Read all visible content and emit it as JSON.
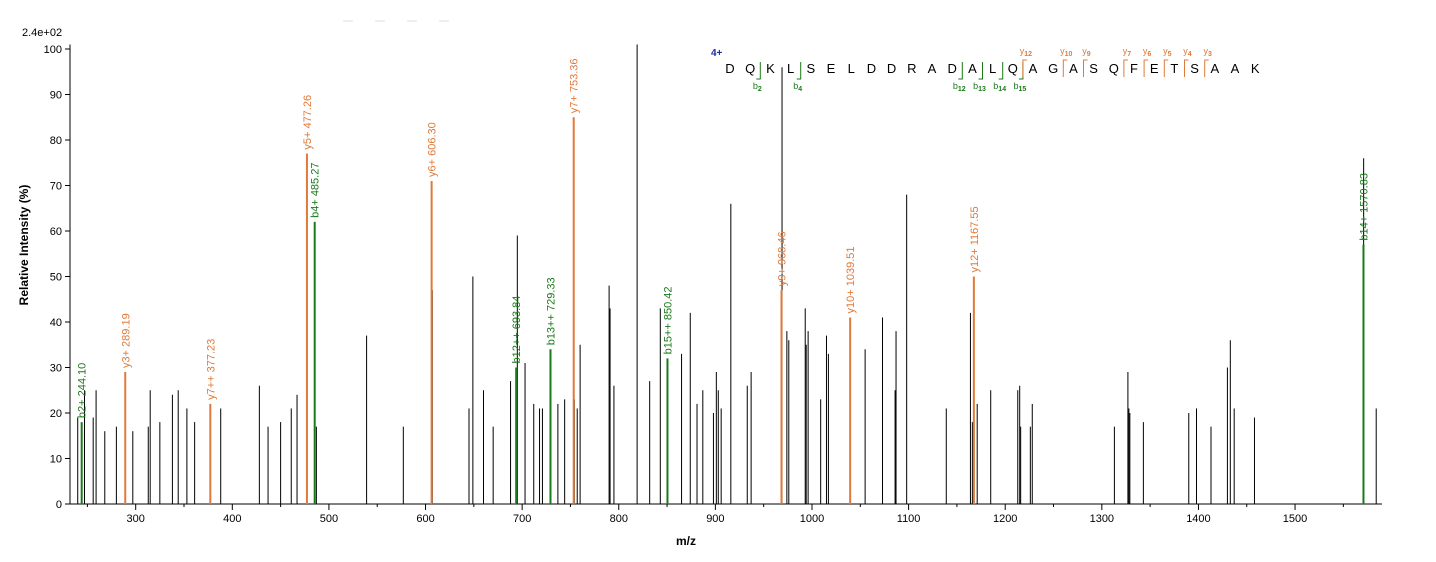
{
  "chart_data": {
    "type": "bar",
    "title": "",
    "xlabel": "m/z",
    "ylabel": "Relative   Intensity (%)",
    "max_intensity_label": "2.4e+02",
    "xlim": [
      232,
      1590
    ],
    "ylim": [
      0,
      101
    ],
    "xticks": [
      300,
      400,
      500,
      600,
      700,
      800,
      900,
      1000,
      1100,
      1200,
      1300,
      1400,
      1500
    ],
    "yticks": [
      0,
      10,
      20,
      30,
      40,
      50,
      60,
      70,
      80,
      90,
      100
    ],
    "colors": {
      "unmatched": "#000000",
      "b_ion": "#1a7a1a",
      "y_ion": "#e07a3a",
      "charge": "#1a2fa0"
    },
    "series": [
      {
        "name": "b ions",
        "points": [
          {
            "x": 244.1,
            "y": 18,
            "label": "b2+ 244.10"
          },
          {
            "x": 485.27,
            "y": 62,
            "label": "b4+ 485.27"
          },
          {
            "x": 693.84,
            "y": 30,
            "label": "b12++ 693.84"
          },
          {
            "x": 729.33,
            "y": 34,
            "label": "b13++ 729.33"
          },
          {
            "x": 850.42,
            "y": 32,
            "label": "b15++ 850.42"
          },
          {
            "x": 1570.83,
            "y": 57,
            "label": "b14+ 1570.83"
          }
        ]
      },
      {
        "name": "y ions",
        "points": [
          {
            "x": 289.19,
            "y": 29,
            "label": "y3+ 289.19"
          },
          {
            "x": 377.23,
            "y": 22,
            "label": "y7++ 377.23"
          },
          {
            "x": 477.26,
            "y": 77,
            "label": "y5+ 477.26"
          },
          {
            "x": 606.3,
            "y": 71,
            "label": "y6+ 606.30"
          },
          {
            "x": 753.36,
            "y": 85,
            "label": "y7+ 753.36"
          },
          {
            "x": 968.46,
            "y": 47,
            "label": "y9+ 968.46"
          },
          {
            "x": 1039.51,
            "y": 41,
            "label": "y10+ 1039.51"
          },
          {
            "x": 1167.55,
            "y": 50,
            "label": "y12+ 1167.55"
          }
        ]
      },
      {
        "name": "unmatched",
        "points": [
          {
            "x": 240,
            "y": 19
          },
          {
            "x": 247,
            "y": 25
          },
          {
            "x": 256,
            "y": 19
          },
          {
            "x": 259,
            "y": 25
          },
          {
            "x": 268,
            "y": 16
          },
          {
            "x": 280,
            "y": 17
          },
          {
            "x": 297,
            "y": 16
          },
          {
            "x": 313,
            "y": 17
          },
          {
            "x": 315,
            "y": 25
          },
          {
            "x": 325,
            "y": 18
          },
          {
            "x": 338,
            "y": 24
          },
          {
            "x": 344,
            "y": 25
          },
          {
            "x": 353,
            "y": 21
          },
          {
            "x": 361,
            "y": 18
          },
          {
            "x": 388,
            "y": 21
          },
          {
            "x": 428,
            "y": 26
          },
          {
            "x": 437,
            "y": 17
          },
          {
            "x": 450,
            "y": 18
          },
          {
            "x": 461,
            "y": 21
          },
          {
            "x": 467,
            "y": 24
          },
          {
            "x": 487,
            "y": 17
          },
          {
            "x": 539,
            "y": 37
          },
          {
            "x": 577,
            "y": 17
          },
          {
            "x": 607,
            "y": 47
          },
          {
            "x": 645,
            "y": 21
          },
          {
            "x": 649,
            "y": 50
          },
          {
            "x": 660,
            "y": 25
          },
          {
            "x": 670,
            "y": 17
          },
          {
            "x": 688,
            "y": 27
          },
          {
            "x": 695,
            "y": 59
          },
          {
            "x": 703,
            "y": 31
          },
          {
            "x": 712,
            "y": 22
          },
          {
            "x": 718,
            "y": 21
          },
          {
            "x": 721,
            "y": 21
          },
          {
            "x": 737,
            "y": 22
          },
          {
            "x": 744,
            "y": 23
          },
          {
            "x": 754,
            "y": 23
          },
          {
            "x": 757,
            "y": 21
          },
          {
            "x": 760,
            "y": 35
          },
          {
            "x": 790,
            "y": 48
          },
          {
            "x": 791,
            "y": 43
          },
          {
            "x": 795,
            "y": 26
          },
          {
            "x": 819,
            "y": 101
          },
          {
            "x": 832,
            "y": 27
          },
          {
            "x": 843,
            "y": 43
          },
          {
            "x": 865,
            "y": 33
          },
          {
            "x": 874,
            "y": 42
          },
          {
            "x": 881,
            "y": 22
          },
          {
            "x": 887,
            "y": 25
          },
          {
            "x": 898,
            "y": 20
          },
          {
            "x": 901,
            "y": 29
          },
          {
            "x": 903,
            "y": 25
          },
          {
            "x": 906,
            "y": 21
          },
          {
            "x": 916,
            "y": 66
          },
          {
            "x": 933,
            "y": 26
          },
          {
            "x": 937,
            "y": 29
          },
          {
            "x": 969,
            "y": 96
          },
          {
            "x": 974,
            "y": 38
          },
          {
            "x": 976,
            "y": 36
          },
          {
            "x": 993,
            "y": 43
          },
          {
            "x": 994,
            "y": 35
          },
          {
            "x": 996,
            "y": 38
          },
          {
            "x": 1009,
            "y": 23
          },
          {
            "x": 1015,
            "y": 37
          },
          {
            "x": 1017,
            "y": 33
          },
          {
            "x": 1055,
            "y": 34
          },
          {
            "x": 1073,
            "y": 41
          },
          {
            "x": 1086,
            "y": 25
          },
          {
            "x": 1087,
            "y": 38
          },
          {
            "x": 1098,
            "y": 68
          },
          {
            "x": 1139,
            "y": 21
          },
          {
            "x": 1164,
            "y": 42
          },
          {
            "x": 1166,
            "y": 18
          },
          {
            "x": 1171,
            "y": 22
          },
          {
            "x": 1185,
            "y": 25
          },
          {
            "x": 1213,
            "y": 25
          },
          {
            "x": 1215,
            "y": 26
          },
          {
            "x": 1216,
            "y": 17
          },
          {
            "x": 1226,
            "y": 17
          },
          {
            "x": 1228,
            "y": 22
          },
          {
            "x": 1313,
            "y": 17
          },
          {
            "x": 1327,
            "y": 29
          },
          {
            "x": 1328,
            "y": 21
          },
          {
            "x": 1329,
            "y": 20
          },
          {
            "x": 1343,
            "y": 18
          },
          {
            "x": 1390,
            "y": 20
          },
          {
            "x": 1398,
            "y": 21
          },
          {
            "x": 1413,
            "y": 17
          },
          {
            "x": 1430,
            "y": 30
          },
          {
            "x": 1433,
            "y": 36
          },
          {
            "x": 1437,
            "y": 21
          },
          {
            "x": 1458,
            "y": 19
          },
          {
            "x": 1571,
            "y": 76
          },
          {
            "x": 1584,
            "y": 21
          }
        ]
      }
    ],
    "sequence": {
      "charge_label": "4+",
      "residues": [
        "D",
        "Q",
        "K",
        "L",
        "S",
        "E",
        "L",
        "D",
        "D",
        "R",
        "A",
        "D",
        "A",
        "L",
        "Q",
        "A",
        "G",
        "A",
        "S",
        "Q",
        "F",
        "E",
        "T",
        "S",
        "A",
        "A",
        "K"
      ],
      "b_marks": [
        {
          "after": 2,
          "label": "b",
          "sub": "2"
        },
        {
          "after": 4,
          "label": "b",
          "sub": "4"
        },
        {
          "after": 12,
          "label": "b",
          "sub": "12"
        },
        {
          "after": 13,
          "label": "b",
          "sub": "13"
        },
        {
          "after": 14,
          "label": "b",
          "sub": "14"
        },
        {
          "after": 15,
          "label": "b",
          "sub": "15"
        }
      ],
      "y_marks": [
        {
          "after": 15,
          "label": "y",
          "sub": "12"
        },
        {
          "after": 17,
          "label": "y",
          "sub": "10"
        },
        {
          "after": 18,
          "label": "y",
          "sub": "9"
        },
        {
          "after": 20,
          "label": "y",
          "sub": "7"
        },
        {
          "after": 21,
          "label": "y",
          "sub": "6"
        },
        {
          "after": 22,
          "label": "y",
          "sub": "5"
        },
        {
          "after": 23,
          "label": "y",
          "sub": "4"
        },
        {
          "after": 24,
          "label": "y",
          "sub": "3"
        }
      ]
    }
  }
}
